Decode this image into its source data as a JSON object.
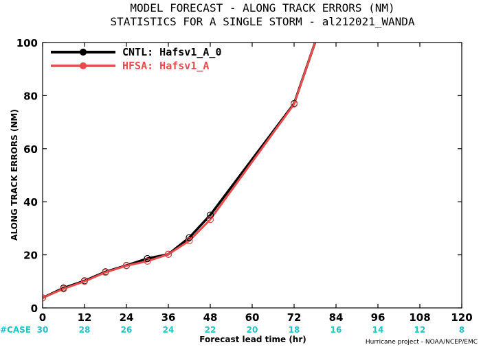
{
  "chart_data": {
    "type": "line",
    "title_lines": [
      "MODEL FORECAST - ALONG TRACK ERRORS (NM)",
      "STATISTICS FOR A SINGLE STORM - al212021_WANDA"
    ],
    "xlabel": "Forecast lead time (hr)",
    "ylabel": "ALONG TRACK ERRORS (NM)",
    "xlim": [
      0,
      120
    ],
    "ylim": [
      0,
      100
    ],
    "x_ticks": [
      0,
      12,
      24,
      36,
      48,
      60,
      72,
      84,
      96,
      108,
      120
    ],
    "y_ticks": [
      0,
      20,
      40,
      60,
      80,
      100
    ],
    "case_label": "#CASE",
    "case_counts": [
      30,
      28,
      26,
      24,
      22,
      20,
      18,
      16,
      14,
      12,
      8
    ],
    "credit": "Hurricane project - NOAA/NCEP/EMC",
    "series": [
      {
        "name": "CNTL: Hafsv1_A_0",
        "color": "#000000",
        "x": [
          0,
          6,
          12,
          18,
          24,
          30,
          36,
          42,
          48,
          72,
          78
        ],
        "y": [
          3.8,
          7.5,
          10.2,
          13.6,
          16.0,
          18.6,
          20.2,
          26.5,
          35.0,
          77.0,
          100
        ]
      },
      {
        "name": "HFSA: Hafsv1_A",
        "color": "#e84c4c",
        "x": [
          0,
          6,
          12,
          18,
          24,
          30,
          36,
          42,
          48,
          72,
          78
        ],
        "y": [
          3.8,
          7.2,
          10.0,
          13.4,
          15.9,
          17.6,
          20.2,
          25.3,
          33.3,
          76.8,
          100
        ]
      }
    ],
    "marker_x": [
      0,
      6,
      12,
      18,
      24,
      30,
      36,
      42,
      48,
      72
    ],
    "grid": false,
    "legend_position": "top-left"
  }
}
